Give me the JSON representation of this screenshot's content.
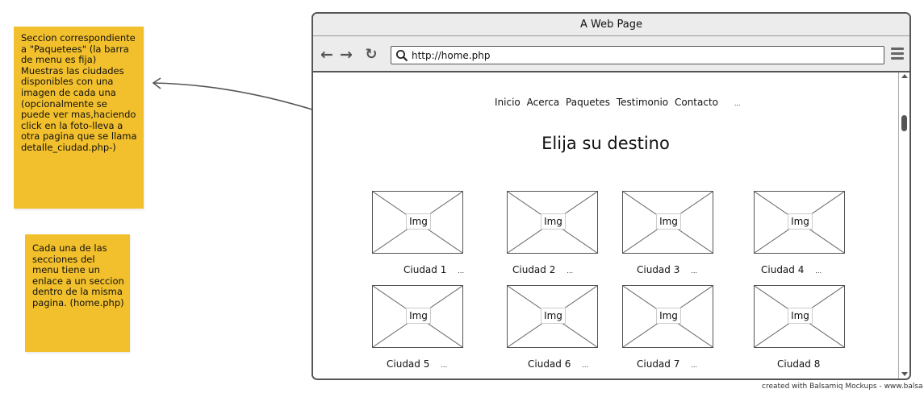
{
  "notes": [
    "Seccion correspondiente a \"Paquetees\" (la barra de menu es fija) Muestras las ciudades disponibles con una imagen de cada una (opcionalmente se puede ver mas,haciendo click en la foto-lleva a otra pagina que se llama detalle_ciudad.php-)",
    "Cada una de las secciones del menu tiene un enlace a un seccion dentro de la misma pagina. (home.php)"
  ],
  "browser": {
    "title": "A Web Page",
    "url": "http://home.php"
  },
  "nav": {
    "items": [
      "Inicio",
      "Acerca",
      "Paquetes",
      "Testimonio",
      "Contacto"
    ],
    "more": "..."
  },
  "heading": "Elija su destino",
  "image_label": "Img",
  "cities": [
    {
      "name": "Ciudad 1",
      "more": "..."
    },
    {
      "name": "Ciudad 2",
      "more": "..."
    },
    {
      "name": "Ciudad 3",
      "more": "..."
    },
    {
      "name": "Ciudad 4",
      "more": "..."
    },
    {
      "name": "Ciudad 5",
      "more": "..."
    },
    {
      "name": "Ciudad 6",
      "more": "..."
    },
    {
      "name": "Ciudad 7",
      "more": "..."
    },
    {
      "name": "Ciudad 8",
      "more": ""
    }
  ],
  "credit": "created with Balsamiq Mockups - www.balsa",
  "colors": {
    "note": "#f2c02c",
    "chrome": "#ececec",
    "border": "#555555"
  },
  "icons": {
    "back": "arrow-left-icon",
    "forward": "arrow-right-icon",
    "reload": "reload-icon",
    "search": "search-icon",
    "menu": "hamburger-menu-icon"
  }
}
